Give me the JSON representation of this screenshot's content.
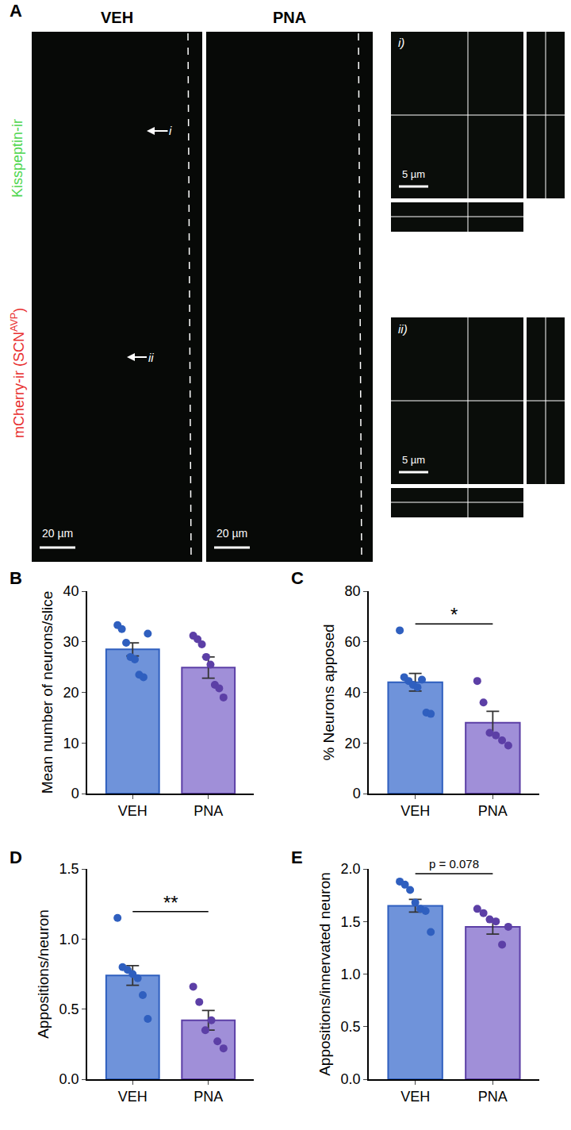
{
  "panel_a": {
    "title": "A",
    "conditions": [
      "VEH",
      "PNA"
    ],
    "channels": [
      {
        "text": "Kisspeptin-ir",
        "color": "#4fd64f"
      },
      {
        "text": "mCherry-ir (SCN",
        "sup": "AVP",
        "end": ")",
        "color": "#e83030"
      }
    ],
    "scale_bars": [
      "20 µm",
      "20 µm"
    ],
    "arrow_labels": [
      "i",
      "ii"
    ],
    "insets": [
      {
        "label": "i)",
        "scale_bar": "5 µm"
      },
      {
        "label": "ii)",
        "scale_bar": "5 µm"
      }
    ]
  },
  "chart_data": [
    {
      "type": "bar",
      "title": "B",
      "y_label": "Mean number of neurons/slice",
      "categories": [
        "VEH",
        "PNA"
      ],
      "values": [
        28.5,
        24.9
      ],
      "errors": [
        1.3,
        2.1
      ],
      "points": [
        [
          33.3,
          32.5,
          29.8,
          27.0,
          26.5,
          23.5,
          23.0,
          31.6
        ],
        [
          31.2,
          30.5,
          29.5,
          27.0,
          25.5,
          21.5,
          20.8,
          19.0
        ]
      ],
      "colors": [
        "#6f93da",
        "#a08fd8"
      ],
      "point_colors": [
        "#2f5fbf",
        "#5c3fa6"
      ],
      "ylim": [
        0,
        40
      ],
      "yticks": [
        0,
        10,
        20,
        30,
        40
      ]
    },
    {
      "type": "bar",
      "title": "C",
      "y_label": "% Neurons apposed",
      "categories": [
        "VEH",
        "PNA"
      ],
      "values": [
        44,
        28
      ],
      "errors": [
        3.5,
        4.5
      ],
      "points": [
        [
          64.5,
          46,
          44.5,
          43,
          42,
          45,
          32,
          31.5
        ],
        [
          44.5,
          36,
          24,
          23,
          21,
          19
        ]
      ],
      "colors": [
        "#6f93da",
        "#a08fd8"
      ],
      "point_colors": [
        "#2f5fbf",
        "#5c3fa6"
      ],
      "ylim": [
        0,
        80
      ],
      "yticks": [
        0,
        20,
        40,
        60,
        80
      ],
      "annotations": [
        {
          "text": "*"
        }
      ]
    },
    {
      "type": "bar",
      "title": "D",
      "y_label": "Appositions/neuron",
      "categories": [
        "VEH",
        "PNA"
      ],
      "values": [
        0.74,
        0.42
      ],
      "errors": [
        0.07,
        0.07
      ],
      "points": [
        [
          1.15,
          0.8,
          0.78,
          0.75,
          0.72,
          0.6,
          0.43
        ],
        [
          0.66,
          0.55,
          0.35,
          0.42,
          0.27,
          0.22
        ]
      ],
      "colors": [
        "#6f93da",
        "#a08fd8"
      ],
      "point_colors": [
        "#2f5fbf",
        "#5c3fa6"
      ],
      "ylim": [
        0,
        1.5
      ],
      "yticks": [
        {
          "value": 0,
          "label": "0.0"
        },
        {
          "value": 0.5,
          "label": "0.5"
        },
        {
          "value": 1,
          "label": "1.0"
        },
        {
          "value": 1.5,
          "label": "1.5"
        }
      ],
      "annotations": [
        {
          "text": "**"
        }
      ]
    },
    {
      "type": "bar",
      "title": "E",
      "y_label": "Appositions/innervated neuron",
      "categories": [
        "VEH",
        "PNA"
      ],
      "values": [
        1.65,
        1.45
      ],
      "errors": [
        0.06,
        0.07
      ],
      "points": [
        [
          1.88,
          1.85,
          1.8,
          1.68,
          1.62,
          1.6,
          1.4
        ],
        [
          1.62,
          1.58,
          1.52,
          1.5,
          1.28,
          1.45
        ]
      ],
      "colors": [
        "#6f93da",
        "#a08fd8"
      ],
      "point_colors": [
        "#2f5fbf",
        "#5c3fa6"
      ],
      "ylim": [
        0,
        2
      ],
      "yticks": [
        {
          "value": 0,
          "label": "0.0"
        },
        {
          "value": 0.5,
          "label": "0.5"
        },
        {
          "value": 1,
          "label": "1.0"
        },
        {
          "value": 1.5,
          "label": "1.5"
        },
        {
          "value": 2,
          "label": "2.0"
        }
      ],
      "annotations": [
        {
          "text": "p = 0.078"
        }
      ]
    }
  ]
}
